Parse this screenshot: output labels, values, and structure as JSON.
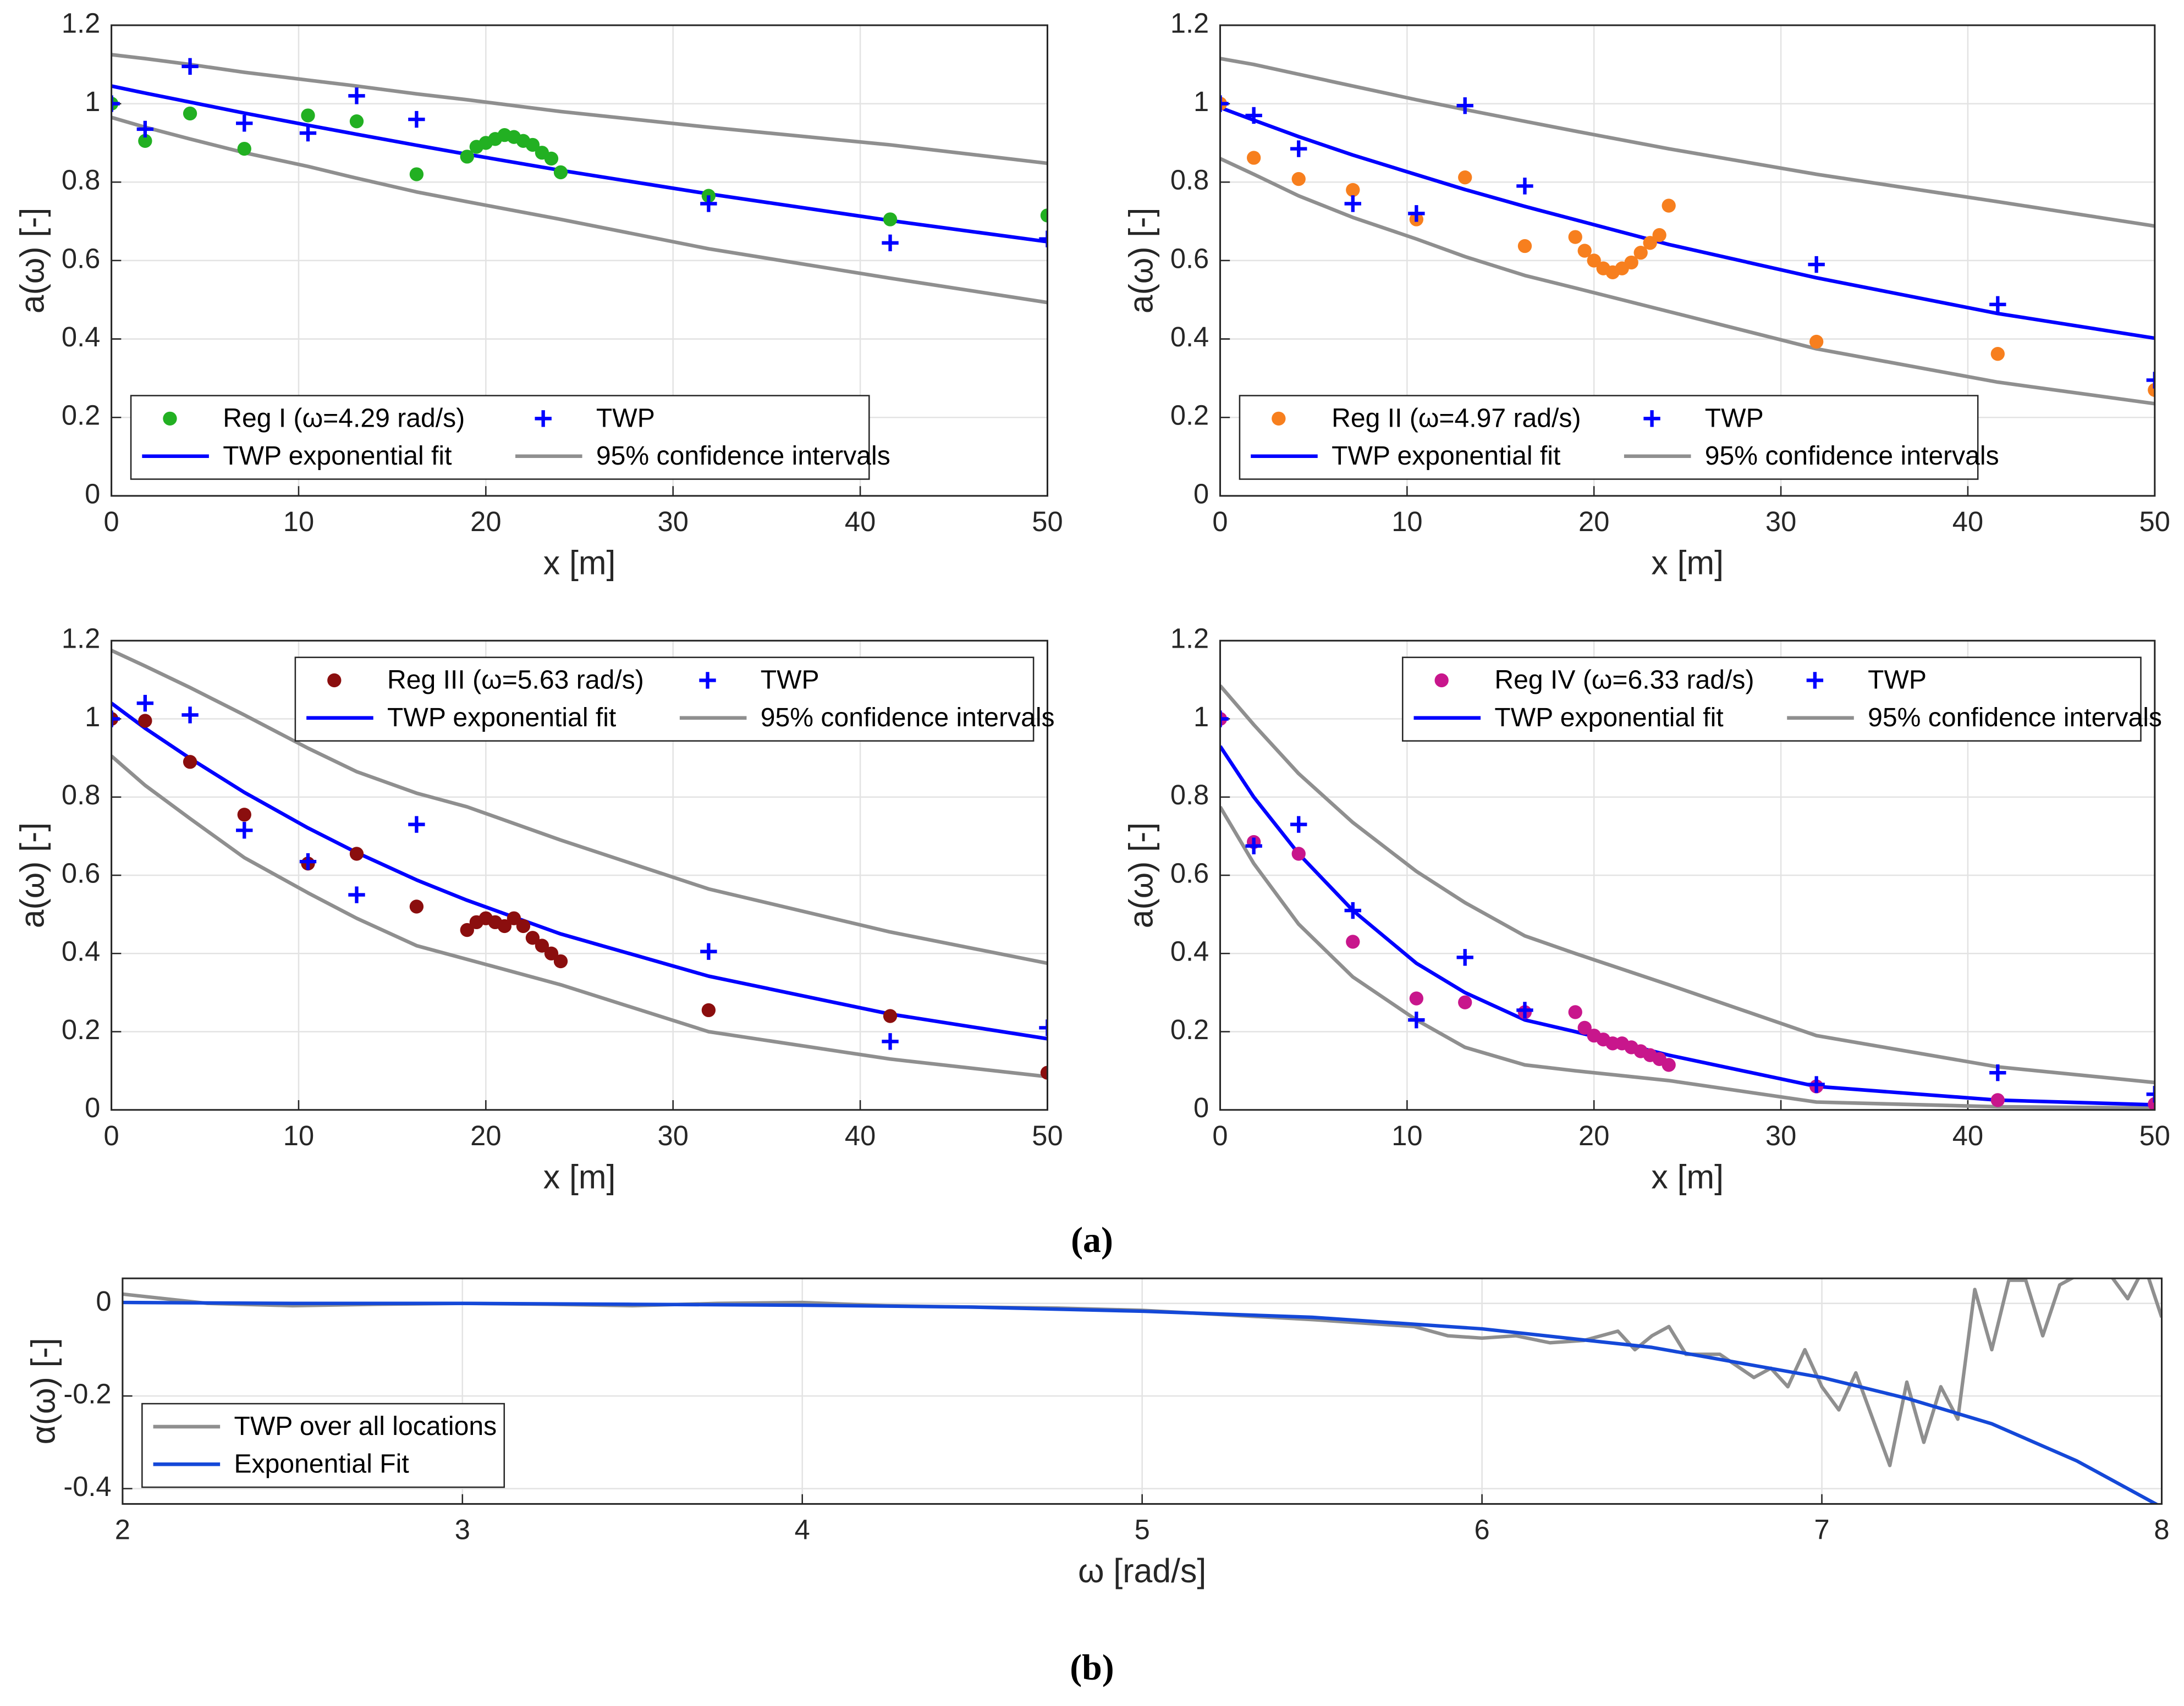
{
  "chart_data": [
    {
      "type": "scatter",
      "xlabel": "x [m]",
      "ylabel": "a(ω) [-]",
      "xlim": [
        0,
        50
      ],
      "ylim": [
        0,
        1.2
      ],
      "xticks": [
        0,
        10,
        20,
        30,
        40,
        50
      ],
      "yticks": [
        0,
        0.2,
        0.4,
        0.6,
        0.8,
        1,
        1.2
      ],
      "grid": true,
      "legend": "lower left",
      "series": [
        {
          "name": "Reg I (ω=4.29 rad/s)",
          "mode": "dots",
          "color": "#22b022",
          "x": [
            0,
            1.8,
            4.2,
            7.1,
            10.5,
            13.1,
            16.3,
            19,
            19.5,
            20,
            20.5,
            21,
            21.5,
            22,
            22.5,
            23,
            23.5,
            24,
            31.9,
            41.6,
            50
          ],
          "values": [
            1.0,
            0.905,
            0.975,
            0.885,
            0.97,
            0.955,
            0.82,
            0.865,
            0.89,
            0.9,
            0.91,
            0.92,
            0.915,
            0.905,
            0.895,
            0.875,
            0.86,
            0.825,
            0.765,
            0.705,
            0.715
          ]
        },
        {
          "name": "TWP",
          "mode": "plus",
          "color": "#0000ff",
          "x": [
            0,
            1.8,
            4.2,
            7.1,
            10.5,
            13.1,
            16.3,
            31.9,
            41.6,
            50
          ],
          "values": [
            1.0,
            0.935,
            1.095,
            0.95,
            0.925,
            1.02,
            0.96,
            0.745,
            0.645,
            0.655
          ]
        },
        {
          "name": "TWP exponential fit",
          "mode": "line",
          "color": "#0000ff",
          "x": [
            0,
            1.8,
            4.2,
            7.1,
            10.5,
            13.1,
            16.3,
            19,
            24,
            31.9,
            41.6,
            50
          ],
          "values": [
            1.045,
            1.027,
            1.004,
            0.976,
            0.945,
            0.922,
            0.894,
            0.871,
            0.83,
            0.77,
            0.702,
            0.648
          ]
        },
        {
          "name": "95% confidence intervals",
          "mode": "band",
          "color": "#8f8f8f",
          "x": [
            0,
            1.8,
            4.2,
            7.1,
            10.5,
            13.1,
            16.3,
            19,
            24,
            31.9,
            41.6,
            50
          ],
          "upper": [
            1.125,
            1.115,
            1.1,
            1.08,
            1.06,
            1.045,
            1.025,
            1.01,
            0.98,
            0.94,
            0.895,
            0.848
          ],
          "lower": [
            0.965,
            0.94,
            0.91,
            0.875,
            0.84,
            0.81,
            0.775,
            0.75,
            0.705,
            0.63,
            0.555,
            0.493
          ]
        }
      ]
    },
    {
      "type": "scatter",
      "xlabel": "x [m]",
      "ylabel": "a(ω) [-]",
      "xlim": [
        0,
        50
      ],
      "ylim": [
        0,
        1.2
      ],
      "xticks": [
        0,
        10,
        20,
        30,
        40,
        50
      ],
      "yticks": [
        0,
        0.2,
        0.4,
        0.6,
        0.8,
        1,
        1.2
      ],
      "grid": true,
      "legend": "lower left",
      "series": [
        {
          "name": "Reg II (ω=4.97 rad/s)",
          "mode": "dots",
          "color": "#f77f1e",
          "x": [
            0,
            1.8,
            4.2,
            7.1,
            10.5,
            13.1,
            16.3,
            19,
            19.5,
            20,
            20.5,
            21,
            21.5,
            22,
            22.5,
            23,
            23.5,
            24,
            31.9,
            41.6,
            50
          ],
          "values": [
            1.0,
            0.862,
            0.808,
            0.78,
            0.705,
            0.812,
            0.637,
            0.66,
            0.625,
            0.6,
            0.58,
            0.57,
            0.58,
            0.595,
            0.62,
            0.645,
            0.665,
            0.74,
            0.393,
            0.362,
            0.27
          ]
        },
        {
          "name": "TWP",
          "mode": "plus",
          "color": "#0000ff",
          "x": [
            0,
            1.8,
            4.2,
            7.1,
            10.5,
            13.1,
            16.3,
            31.9,
            41.6,
            50
          ],
          "values": [
            1.0,
            0.97,
            0.885,
            0.745,
            0.72,
            0.995,
            0.79,
            0.59,
            0.488,
            0.295
          ]
        },
        {
          "name": "TWP exponential fit",
          "mode": "line",
          "color": "#0000ff",
          "x": [
            0,
            1.8,
            4.2,
            7.1,
            10.5,
            13.1,
            16.3,
            19,
            24,
            31.9,
            41.6,
            50
          ],
          "values": [
            0.99,
            0.958,
            0.916,
            0.869,
            0.819,
            0.781,
            0.738,
            0.704,
            0.641,
            0.556,
            0.465,
            0.402
          ]
        },
        {
          "name": "95% confidence intervals",
          "mode": "band",
          "color": "#8f8f8f",
          "x": [
            0,
            1.8,
            4.2,
            7.1,
            10.5,
            13.1,
            16.3,
            19,
            24,
            31.9,
            41.6,
            50
          ],
          "upper": [
            1.115,
            1.1,
            1.075,
            1.045,
            1.01,
            0.985,
            0.955,
            0.93,
            0.885,
            0.82,
            0.75,
            0.688
          ],
          "lower": [
            0.86,
            0.82,
            0.765,
            0.71,
            0.655,
            0.61,
            0.562,
            0.53,
            0.47,
            0.375,
            0.29,
            0.235
          ]
        }
      ]
    },
    {
      "type": "scatter",
      "xlabel": "x [m]",
      "ylabel": "a(ω) [-]",
      "xlim": [
        0,
        50
      ],
      "ylim": [
        0,
        1.2
      ],
      "xticks": [
        0,
        10,
        20,
        30,
        40,
        50
      ],
      "yticks": [
        0,
        0.2,
        0.4,
        0.6,
        0.8,
        1,
        1.2
      ],
      "grid": true,
      "legend": "upper right",
      "series": [
        {
          "name": "Reg III (ω=5.63 rad/s)",
          "mode": "dots",
          "color": "#8b0e0e",
          "x": [
            0,
            1.8,
            4.2,
            7.1,
            10.5,
            13.1,
            16.3,
            19,
            19.5,
            20,
            20.5,
            21,
            21.5,
            22,
            22.5,
            23,
            23.5,
            24,
            31.9,
            41.6,
            50
          ],
          "values": [
            1.0,
            0.995,
            0.89,
            0.755,
            0.63,
            0.655,
            0.52,
            0.46,
            0.48,
            0.49,
            0.48,
            0.47,
            0.49,
            0.47,
            0.44,
            0.42,
            0.4,
            0.38,
            0.255,
            0.24,
            0.095
          ]
        },
        {
          "name": "TWP",
          "mode": "plus",
          "color": "#0000ff",
          "x": [
            0,
            1.8,
            4.2,
            7.1,
            10.5,
            13.1,
            16.3,
            31.9,
            41.6,
            50
          ],
          "values": [
            1.0,
            1.04,
            1.01,
            0.715,
            0.635,
            0.55,
            0.73,
            0.405,
            0.175,
            0.21
          ]
        },
        {
          "name": "TWP exponential fit",
          "mode": "line",
          "color": "#0000ff",
          "x": [
            0,
            1.8,
            4.2,
            7.1,
            10.5,
            13.1,
            16.3,
            19,
            24,
            31.9,
            41.6,
            50
          ],
          "values": [
            1.04,
            0.976,
            0.899,
            0.812,
            0.721,
            0.658,
            0.588,
            0.536,
            0.45,
            0.342,
            0.245,
            0.182
          ]
        },
        {
          "name": "95% confidence intervals",
          "mode": "band",
          "color": "#8f8f8f",
          "x": [
            0,
            1.8,
            4.2,
            7.1,
            10.5,
            13.1,
            16.3,
            19,
            24,
            31.9,
            41.6,
            50
          ],
          "upper": [
            1.175,
            1.135,
            1.08,
            1.01,
            0.925,
            0.865,
            0.81,
            0.775,
            0.69,
            0.565,
            0.455,
            0.375
          ],
          "lower": [
            0.905,
            0.83,
            0.745,
            0.645,
            0.555,
            0.49,
            0.42,
            0.385,
            0.32,
            0.2,
            0.13,
            0.085
          ]
        }
      ]
    },
    {
      "type": "scatter",
      "xlabel": "x [m]",
      "ylabel": "a(ω) [-]",
      "xlim": [
        0,
        50
      ],
      "ylim": [
        0,
        1.2
      ],
      "xticks": [
        0,
        10,
        20,
        30,
        40,
        50
      ],
      "yticks": [
        0,
        0.2,
        0.4,
        0.6,
        0.8,
        1,
        1.2
      ],
      "grid": true,
      "legend": "upper right",
      "series": [
        {
          "name": "Reg IV (ω=6.33 rad/s)",
          "mode": "dots",
          "color": "#c8168c",
          "x": [
            0,
            1.8,
            4.2,
            7.1,
            10.5,
            13.1,
            16.3,
            19,
            19.5,
            20,
            20.5,
            21,
            21.5,
            22,
            22.5,
            23,
            23.5,
            24,
            31.9,
            41.6,
            50
          ],
          "values": [
            1.0,
            0.685,
            0.655,
            0.43,
            0.285,
            0.275,
            0.25,
            0.25,
            0.21,
            0.19,
            0.18,
            0.17,
            0.17,
            0.16,
            0.15,
            0.14,
            0.13,
            0.115,
            0.06,
            0.025,
            0.015
          ]
        },
        {
          "name": "TWP",
          "mode": "plus",
          "color": "#0000ff",
          "x": [
            0,
            1.8,
            4.2,
            7.1,
            10.5,
            13.1,
            16.3,
            31.9,
            41.6,
            50
          ],
          "values": [
            1.0,
            0.675,
            0.73,
            0.51,
            0.23,
            0.39,
            0.255,
            0.065,
            0.095,
            0.04
          ]
        },
        {
          "name": "TWP exponential fit",
          "mode": "line",
          "color": "#0000ff",
          "x": [
            0,
            1.8,
            4.2,
            7.1,
            10.5,
            13.1,
            16.3,
            19,
            24,
            31.9,
            41.6,
            50
          ],
          "values": [
            0.93,
            0.8,
            0.655,
            0.51,
            0.375,
            0.3,
            0.23,
            0.2,
            0.14,
            0.06,
            0.025,
            0.013
          ]
        },
        {
          "name": "95% confidence intervals",
          "mode": "band",
          "color": "#8f8f8f",
          "x": [
            0,
            1.8,
            4.2,
            7.1,
            10.5,
            13.1,
            16.3,
            19,
            24,
            31.9,
            41.6,
            50
          ],
          "upper": [
            1.085,
            0.985,
            0.86,
            0.735,
            0.61,
            0.53,
            0.445,
            0.4,
            0.32,
            0.19,
            0.11,
            0.07
          ],
          "lower": [
            0.775,
            0.63,
            0.475,
            0.34,
            0.23,
            0.16,
            0.115,
            0.1,
            0.075,
            0.02,
            0.008,
            0.005
          ]
        }
      ]
    },
    {
      "type": "line",
      "xlabel": "ω [rad/s]",
      "ylabel": "α(ω) [-]",
      "xlim": [
        2,
        8
      ],
      "ylim": [
        -0.433,
        0.054
      ],
      "xticks": [
        2,
        3,
        4,
        5,
        6,
        7,
        8
      ],
      "yticks": [
        -0.4,
        -0.2,
        0
      ],
      "grid": true,
      "legend": "lower left",
      "series": [
        {
          "name": "TWP over all locations",
          "mode": "line",
          "color": "#8f8f8f",
          "x": [
            2,
            2.25,
            2.5,
            2.75,
            3,
            3.25,
            3.5,
            3.75,
            4,
            4.25,
            4.5,
            4.75,
            5,
            5.25,
            5.5,
            5.8,
            5.9,
            6,
            6.1,
            6.2,
            6.3,
            6.4,
            6.45,
            6.5,
            6.55,
            6.6,
            6.7,
            6.8,
            6.85,
            6.9,
            6.95,
            7,
            7.05,
            7.1,
            7.15,
            7.2,
            7.25,
            7.3,
            7.35,
            7.4,
            7.45,
            7.5,
            7.55,
            7.6,
            7.65,
            7.7,
            7.75,
            7.8,
            7.85,
            7.9,
            7.95,
            8
          ],
          "values": [
            0.02,
            0,
            -0.005,
            -0.002,
            0,
            -0.002,
            -0.005,
            0,
            0.002,
            -0.005,
            -0.008,
            -0.01,
            -0.015,
            -0.025,
            -0.035,
            -0.05,
            -0.07,
            -0.075,
            -0.07,
            -0.085,
            -0.08,
            -0.06,
            -0.1,
            -0.07,
            -0.05,
            -0.11,
            -0.11,
            -0.16,
            -0.14,
            -0.18,
            -0.1,
            -0.18,
            -0.23,
            -0.15,
            -0.25,
            -0.35,
            -0.17,
            -0.3,
            -0.18,
            -0.25,
            0.03,
            -0.1,
            0.05,
            0.05,
            -0.07,
            0.04,
            0.06,
            0.06,
            0.06,
            0.01,
            0.08,
            -0.03
          ]
        },
        {
          "name": "Exponential Fit",
          "mode": "line",
          "color": "#1448d8",
          "x": [
            2,
            2.5,
            3,
            3.5,
            4,
            4.5,
            5,
            5.5,
            6,
            6.5,
            7,
            7.25,
            7.5,
            7.75,
            8
          ],
          "values": [
            0.002,
            0,
            0,
            -0.002,
            -0.004,
            -0.008,
            -0.017,
            -0.03,
            -0.055,
            -0.095,
            -0.16,
            -0.205,
            -0.26,
            -0.34,
            -0.44
          ]
        }
      ]
    }
  ],
  "captions": [
    "(a)",
    "(b)"
  ]
}
